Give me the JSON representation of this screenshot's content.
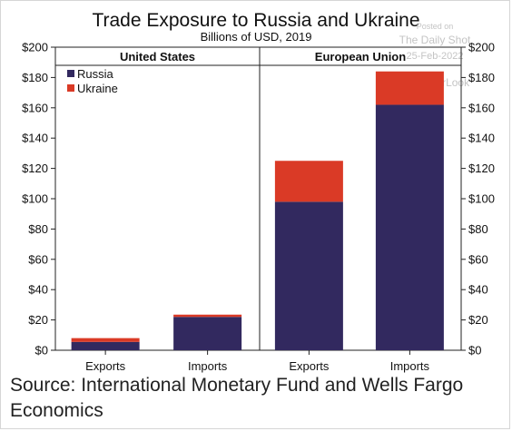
{
  "watermark": {
    "posted_on": "Posted on",
    "site": "The Daily Shot",
    "date": "25-Feb-2022",
    "handle": "@SoberLook"
  },
  "source": "Source: International Monetary Fund and Wells Fargo Economics",
  "colors": {
    "russia": "#32295f",
    "ukraine": "#da3a26",
    "axis": "#222222"
  },
  "chart_data": {
    "type": "bar",
    "stacked": true,
    "title": "Trade Exposure to Russia and Ukraine",
    "subtitle": "Billions of USD, 2019",
    "ylim": [
      0,
      200
    ],
    "yticks": [
      0,
      20,
      40,
      60,
      80,
      100,
      120,
      140,
      160,
      180,
      200
    ],
    "ytick_labels": [
      "$0",
      "$20",
      "$40",
      "$60",
      "$80",
      "$100",
      "$120",
      "$140",
      "$160",
      "$180",
      "$200"
    ],
    "y_axis_sides": [
      "left",
      "right"
    ],
    "legend": {
      "placement": "top-left",
      "entries": [
        "Russia",
        "Ukraine"
      ]
    },
    "panels": [
      {
        "title": "United States",
        "categories": [
          "Exports",
          "Imports"
        ],
        "series": [
          {
            "name": "Russia",
            "values": [
              5.5,
              22
            ]
          },
          {
            "name": "Ukraine",
            "values": [
              2.5,
              1.5
            ]
          }
        ]
      },
      {
        "title": "European Union",
        "categories": [
          "Exports",
          "Imports"
        ],
        "series": [
          {
            "name": "Russia",
            "values": [
              98,
              162
            ]
          },
          {
            "name": "Ukraine",
            "values": [
              27,
              22
            ]
          }
        ]
      }
    ]
  }
}
